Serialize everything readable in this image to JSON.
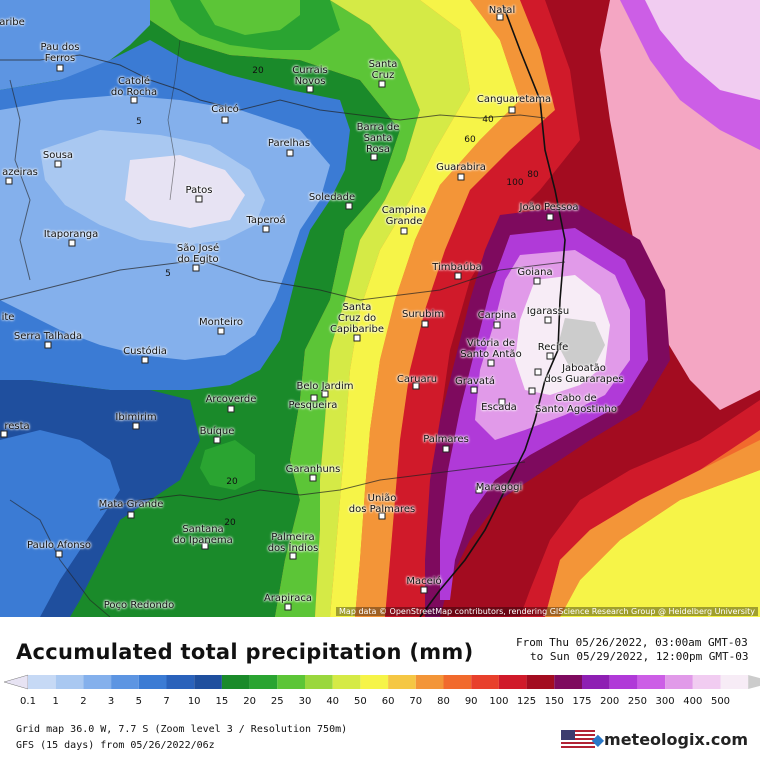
{
  "title": "Accumulated total precipitation (mm)",
  "period": {
    "from": "From Thu 05/26/2022, 03:00am GMT-03",
    "to": "to Sun 05/29/2022, 12:00pm GMT-03"
  },
  "attribution": "Map data © OpenStreetMap contributors, rendering GIScience Research Group @ Heidelberg University",
  "footer": {
    "grid": "Grid map 36.0 W, 7.7 S (Zoom level 3 / Resolution 750m)",
    "model": "GFS (15 days) from 05/26/2022/06z"
  },
  "brand": "meteologix.com",
  "legend": {
    "labels": [
      "0.1",
      "1",
      "2",
      "3",
      "5",
      "7",
      "10",
      "15",
      "20",
      "25",
      "30",
      "40",
      "50",
      "60",
      "70",
      "80",
      "90",
      "100",
      "125",
      "150",
      "175",
      "200",
      "250",
      "300",
      "400",
      "500"
    ],
    "colors": [
      "#e7e3f3",
      "#c6d9f5",
      "#a9c8f1",
      "#84b0ec",
      "#5d95e2",
      "#3b7bd4",
      "#2a62bb",
      "#1f4f9e",
      "#1a8a2a",
      "#2aa431",
      "#5cc537",
      "#9ad73d",
      "#d5ea46",
      "#f6f448",
      "#f5c744",
      "#f39538",
      "#f16a2d",
      "#e8402c",
      "#d01a2a",
      "#a30c20",
      "#7e0a5e",
      "#8e1fb3",
      "#b03ad8",
      "#cc5ee6",
      "#e19ae9",
      "#f1ccf1",
      "#f7ecf6",
      "#cccccc"
    ]
  },
  "contours": [
    "20",
    "5",
    "5",
    "20",
    "40",
    "60",
    "80",
    "100",
    "20",
    "20"
  ],
  "cities": [
    {
      "name": "Natal"
    },
    {
      "name": "Pau dos\nFerros"
    },
    {
      "name": "Catolé\ndo Rocha"
    },
    {
      "name": "Currais\nNovos"
    },
    {
      "name": "Santa\nCruz"
    },
    {
      "name": "Canguaretama"
    },
    {
      "name": "Caicó"
    },
    {
      "name": "Barra de\nSanta\nRosa"
    },
    {
      "name": "Parelhas"
    },
    {
      "name": "Sousa"
    },
    {
      "name": "Guarabira"
    },
    {
      "name": "azeiras"
    },
    {
      "name": "Patos"
    },
    {
      "name": "Soledade"
    },
    {
      "name": "João Pessoa"
    },
    {
      "name": "Campina\nGrande"
    },
    {
      "name": "Taperoá"
    },
    {
      "name": "Itaporanga"
    },
    {
      "name": "São José\ndo Egito"
    },
    {
      "name": "Timbaúba"
    },
    {
      "name": "Goiana"
    },
    {
      "name": "Igarassu"
    },
    {
      "name": "Santa\nCruz do\nCapibaribe"
    },
    {
      "name": "Surubim"
    },
    {
      "name": "Carpina"
    },
    {
      "name": "Monteiro"
    },
    {
      "name": "ite"
    },
    {
      "name": "Serra Talhada"
    },
    {
      "name": "Vitória de\nSanto Antão"
    },
    {
      "name": "Recife"
    },
    {
      "name": "Custódia"
    },
    {
      "name": "Jaboatão\ndos Guararapes"
    },
    {
      "name": "Belo Jardim"
    },
    {
      "name": "Caruaru"
    },
    {
      "name": "Gravatá"
    },
    {
      "name": "Pesqueira"
    },
    {
      "name": "Arcoverde"
    },
    {
      "name": "Escada"
    },
    {
      "name": "Cabo de\nSanto Agostinho"
    },
    {
      "name": "Ibimirim"
    },
    {
      "name": "resta"
    },
    {
      "name": "Buíque"
    },
    {
      "name": "Palmares"
    },
    {
      "name": "Garanhuns"
    },
    {
      "name": "Maragogi"
    },
    {
      "name": "União\ndos Palmares"
    },
    {
      "name": "Mata Grande"
    },
    {
      "name": "Santana\ndo Ipanema"
    },
    {
      "name": "Paulo Afonso"
    },
    {
      "name": "Palmeira\ndos Índios"
    },
    {
      "name": "Maceió"
    },
    {
      "name": "Arapiraca"
    },
    {
      "name": "Poço Redondo"
    },
    {
      "name": "aribe"
    }
  ]
}
